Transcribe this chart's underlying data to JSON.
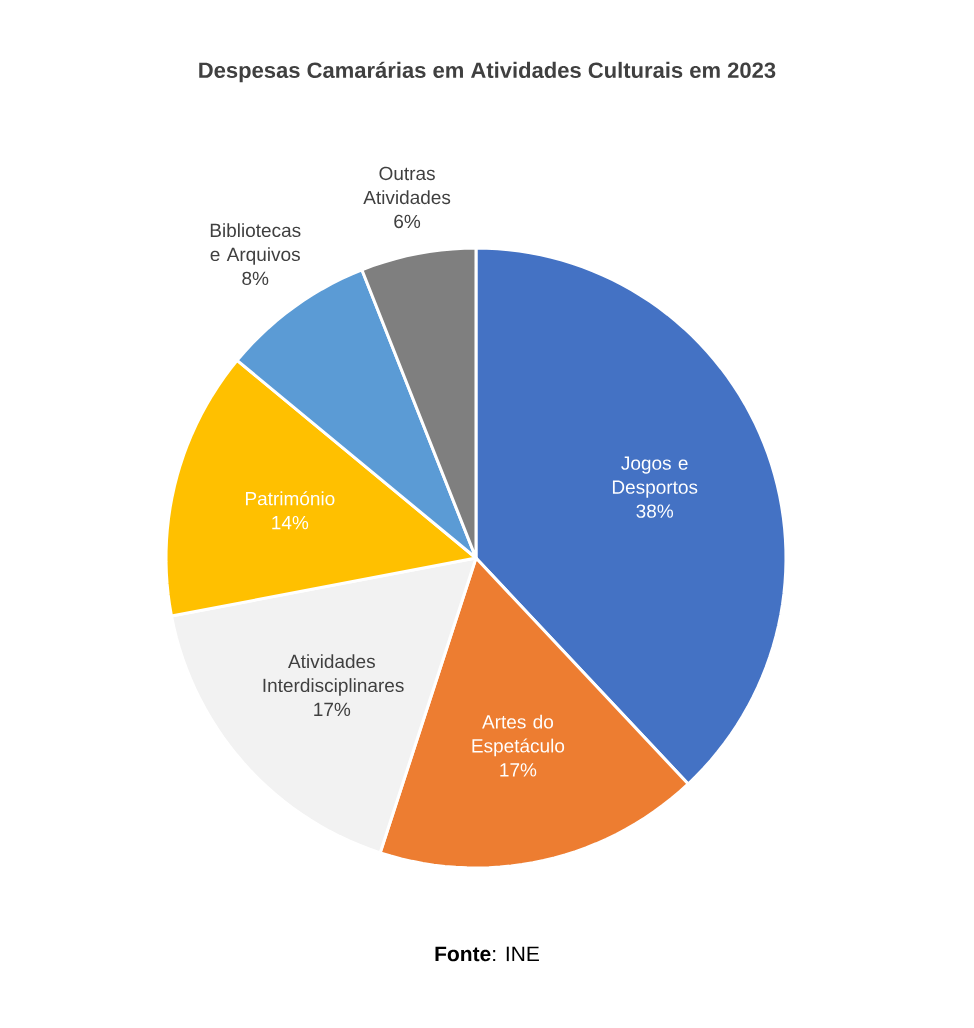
{
  "chart_data": {
    "type": "pie",
    "title": "Despesas Camarárias em Atividades Culturais em 2023",
    "categories": [
      "Jogos e Desportos",
      "Artes do Espetáculo",
      "Atividades Interdisciplinares",
      "Património",
      "Bibliotecas e Arquivos",
      "Outras Atividades"
    ],
    "values": [
      38,
      17,
      17,
      14,
      8,
      6
    ],
    "value_labels": [
      "38%",
      "17%",
      "17%",
      "14%",
      "8%",
      "6%"
    ],
    "colors": [
      "#4472c4",
      "#ed7d31",
      "#f2f2f2",
      "#ffc000",
      "#5b9bd5",
      "#7f7f7f"
    ],
    "annotations": [
      "**Fonte**: INE"
    ]
  }
}
